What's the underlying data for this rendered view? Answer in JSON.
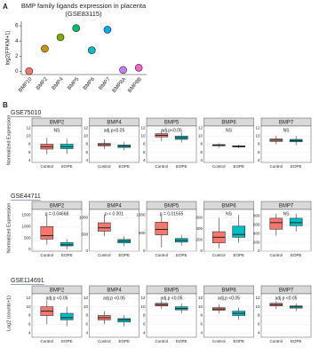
{
  "panel_labels": [
    "A",
    "B"
  ],
  "rows": [
    {
      "dataset": "GSE75010",
      "ylabel": "Normalized Expression"
    },
    {
      "dataset": "GSE44711",
      "ylabel": "Normalized Expression"
    },
    {
      "dataset": "GSE114691",
      "ylabel": "Log2 (counts+1)"
    }
  ],
  "chart_data": [
    {
      "type": "dot",
      "title": "BMP family ligands expression in placenta",
      "subtitle": "(GSE83115)",
      "ylabel": "log2(FPKM+1)",
      "categories": [
        "BMP10",
        "BMP2",
        "BMP4",
        "BMP5",
        "BMP6",
        "BMP7",
        "BMP8A",
        "BMP8B"
      ],
      "values": [
        0.05,
        3.0,
        4.5,
        5.7,
        2.8,
        5.5,
        0.2,
        0.5
      ],
      "colors": [
        "#f8766d",
        "#cd9600",
        "#7cae00",
        "#00be67",
        "#00bfc4",
        "#00a9ff",
        "#c77cff",
        "#ff61cc"
      ],
      "ylim": [
        -0.4,
        6.6
      ],
      "yticks": [
        0,
        2,
        4,
        6
      ]
    },
    {
      "type": "box",
      "title": "BMP2",
      "annotation": "NS",
      "ylim": [
        3.5,
        12.5
      ],
      "yticks": [
        4,
        6,
        8,
        10,
        12
      ],
      "boxes": [
        {
          "name": "Control",
          "color": "#f8766d",
          "low": 5.5,
          "q1": 6.8,
          "median": 7.4,
          "q3": 8,
          "high": 9.6
        },
        {
          "name": "EOPE",
          "color": "#00bfc4",
          "low": 5.6,
          "q1": 6.9,
          "median": 7.4,
          "q3": 8,
          "high": 9.3
        }
      ]
    },
    {
      "type": "box",
      "title": "BMP4",
      "annotation": "adj.p<0.05",
      "ylim": [
        3.5,
        12.5
      ],
      "yticks": [
        4,
        6,
        8,
        10,
        12
      ],
      "boxes": [
        {
          "name": "Control",
          "color": "#f8766d",
          "low": 6.8,
          "q1": 7.6,
          "median": 7.9,
          "q3": 8.2,
          "high": 9.2
        },
        {
          "name": "EOPE",
          "color": "#00bfc4",
          "low": 6.5,
          "q1": 7.2,
          "median": 7.5,
          "q3": 7.8,
          "high": 8.6
        }
      ]
    },
    {
      "type": "box",
      "title": "BMP5",
      "annotation": "adj.p<0.05",
      "ylim": [
        3.5,
        12.5
      ],
      "yticks": [
        4,
        6,
        8,
        10,
        12
      ],
      "boxes": [
        {
          "name": "Control",
          "color": "#f8766d",
          "low": 8.8,
          "q1": 9.8,
          "median": 10.2,
          "q3": 10.6,
          "high": 11.5
        },
        {
          "name": "EOPE",
          "color": "#00bfc4",
          "low": 8.4,
          "q1": 9.2,
          "median": 9.6,
          "q3": 10,
          "high": 10.9
        }
      ]
    },
    {
      "type": "box",
      "title": "BMP6",
      "annotation": "NS",
      "ylim": [
        3.5,
        12.5
      ],
      "yticks": [
        4,
        6,
        8,
        10,
        12
      ],
      "boxes": [
        {
          "name": "Control",
          "color": "#f8766d",
          "low": 7.2,
          "q1": 7.6,
          "median": 7.8,
          "q3": 7.9,
          "high": 8.2
        },
        {
          "name": "EOPE",
          "color": "#00bfc4",
          "low": 7.0,
          "q1": 7.3,
          "median": 7.5,
          "q3": 7.6,
          "high": 7.9
        }
      ]
    },
    {
      "type": "box",
      "title": "BMP7",
      "annotation": "NS",
      "ylim": [
        3.5,
        12.5
      ],
      "yticks": [
        4,
        6,
        8,
        10,
        12
      ],
      "boxes": [
        {
          "name": "Control",
          "color": "#f8766d",
          "low": 8,
          "q1": 8.7,
          "median": 9,
          "q3": 9.3,
          "high": 10.1
        },
        {
          "name": "EOPE",
          "color": "#00bfc4",
          "low": 7.8,
          "q1": 8.6,
          "median": 8.9,
          "q3": 9.2,
          "high": 10
        }
      ]
    },
    {
      "type": "box",
      "title": "BMP2",
      "annotation": "p = 0.04668",
      "ylim": [
        -80,
        1750
      ],
      "yticks": [
        0,
        500,
        1000,
        1500
      ],
      "boxes": [
        {
          "name": "Control",
          "color": "#f8766d",
          "low": 200,
          "q1": 450,
          "median": 600,
          "q3": 1000,
          "high": 1500
        },
        {
          "name": "EOPE",
          "color": "#00bfc4",
          "low": 0,
          "q1": 150,
          "median": 200,
          "q3": 300,
          "high": 450
        }
      ]
    },
    {
      "type": "box",
      "title": "BMP4",
      "annotation": "p < 0.001",
      "ylim": [
        0,
        1250
      ],
      "yticks": [
        0,
        500,
        1000
      ],
      "boxes": [
        {
          "name": "Control",
          "color": "#f8766d",
          "low": 450,
          "q1": 600,
          "median": 700,
          "q3": 850,
          "high": 1100
        },
        {
          "name": "EOPE",
          "color": "#00bfc4",
          "low": 150,
          "q1": 250,
          "median": 300,
          "q3": 350,
          "high": 450
        }
      ]
    },
    {
      "type": "box",
      "title": "BMP5",
      "annotation": "p = 0.01555",
      "ylim": [
        0,
        1150
      ],
      "yticks": [
        0,
        500,
        1000
      ],
      "boxes": [
        {
          "name": "Control",
          "color": "#f8766d",
          "low": 100,
          "q1": 450,
          "median": 600,
          "q3": 800,
          "high": 1000
        },
        {
          "name": "EOPE",
          "color": "#00bfc4",
          "low": 150,
          "q1": 250,
          "median": 300,
          "q3": 350,
          "high": 450
        }
      ]
    },
    {
      "type": "box",
      "title": "BMP6",
      "annotation": "NS",
      "ylim": [
        0,
        750
      ],
      "yticks": [
        0,
        200,
        400,
        600
      ],
      "boxes": [
        {
          "name": "Control",
          "color": "#f8766d",
          "low": 50,
          "q1": 150,
          "median": 250,
          "q3": 350,
          "high": 600
        },
        {
          "name": "EOPE",
          "color": "#00bfc4",
          "low": 150,
          "q1": 250,
          "median": 300,
          "q3": 450,
          "high": 650
        }
      ]
    },
    {
      "type": "box",
      "title": "BMP7",
      "annotation": "NS",
      "ylim": [
        0,
        950
      ],
      "yticks": [
        0,
        200,
        400,
        600,
        800
      ],
      "boxes": [
        {
          "name": "Control",
          "color": "#f8766d",
          "low": 350,
          "q1": 500,
          "median": 650,
          "q3": 750,
          "high": 850
        },
        {
          "name": "EOPE",
          "color": "#00bfc4",
          "low": 450,
          "q1": 580,
          "median": 650,
          "q3": 750,
          "high": 850
        }
      ]
    },
    {
      "type": "box",
      "title": "BMP2",
      "annotation": "adj.p <0.05",
      "ylim": [
        3,
        13
      ],
      "yticks": [
        4,
        6,
        8,
        10,
        12
      ],
      "boxes": [
        {
          "name": "Control",
          "color": "#f8766d",
          "low": 6,
          "q1": 8,
          "median": 9,
          "q3": 10,
          "high": 11.5
        },
        {
          "name": "EOPE",
          "color": "#00bfc4",
          "low": 5.5,
          "q1": 7,
          "median": 7.5,
          "q3": 8.5,
          "high": 10
        }
      ]
    },
    {
      "type": "box",
      "title": "BMP4",
      "annotation": "adj.p <0.05",
      "ylim": [
        3,
        13
      ],
      "yticks": [
        4,
        6,
        8,
        10,
        12
      ],
      "boxes": [
        {
          "name": "Control",
          "color": "#f8766d",
          "low": 6,
          "q1": 7,
          "median": 7.5,
          "q3": 8,
          "high": 9
        },
        {
          "name": "EOPE",
          "color": "#00bfc4",
          "low": 5.5,
          "q1": 6.5,
          "median": 7,
          "q3": 7.3,
          "high": 8
        }
      ]
    },
    {
      "type": "box",
      "title": "BMP5",
      "annotation": "adj.p <0.05",
      "ylim": [
        3,
        13
      ],
      "yticks": [
        4,
        6,
        8,
        10,
        12
      ],
      "boxes": [
        {
          "name": "Control",
          "color": "#f8766d",
          "low": 9.5,
          "q1": 10.2,
          "median": 10.5,
          "q3": 10.8,
          "high": 11.5
        },
        {
          "name": "EOPE",
          "color": "#00bfc4",
          "low": 8.5,
          "q1": 9.3,
          "median": 9.6,
          "q3": 10,
          "high": 10.8
        }
      ]
    },
    {
      "type": "box",
      "title": "BMP6",
      "annotation": "adj.p <0.05",
      "ylim": [
        3,
        13
      ],
      "yticks": [
        4,
        6,
        8,
        10,
        12
      ],
      "boxes": [
        {
          "name": "Control",
          "color": "#f8766d",
          "low": 8.5,
          "q1": 9.2,
          "median": 9.5,
          "q3": 9.8,
          "high": 10.5
        },
        {
          "name": "EOPE",
          "color": "#00bfc4",
          "low": 7,
          "q1": 8,
          "median": 8.5,
          "q3": 9,
          "high": 9.8
        }
      ]
    },
    {
      "type": "box",
      "title": "BMP7",
      "annotation": "adj.p <0.05",
      "ylim": [
        3,
        13
      ],
      "yticks": [
        4,
        6,
        8,
        10,
        12
      ],
      "boxes": [
        {
          "name": "Control",
          "color": "#f8766d",
          "low": 9.5,
          "q1": 10.2,
          "median": 10.5,
          "q3": 10.8,
          "high": 11.3
        },
        {
          "name": "EOPE",
          "color": "#00bfc4",
          "low": 9,
          "q1": 9.7,
          "median": 10,
          "q3": 10.2,
          "high": 10.8
        }
      ]
    }
  ]
}
